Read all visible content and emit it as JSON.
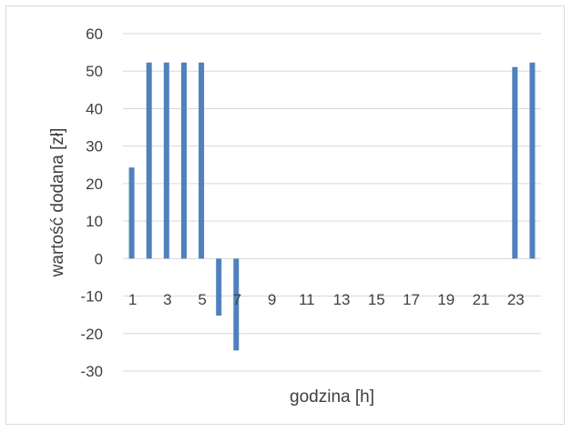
{
  "chart_data": {
    "type": "bar",
    "xlabel": "godzina [h]",
    "ylabel": "wartość dodana [zł]",
    "ylim": [
      -30,
      60
    ],
    "ytick_step": 10,
    "grid": true,
    "categories": [
      "1",
      "2",
      "3",
      "4",
      "5",
      "6",
      "7",
      "8",
      "9",
      "10",
      "11",
      "12",
      "13",
      "14",
      "15",
      "16",
      "17",
      "18",
      "19",
      "20",
      "21",
      "22",
      "23",
      "24"
    ],
    "x_tick_labels": [
      "1",
      "",
      "3",
      "",
      "5",
      "",
      "7",
      "",
      "9",
      "",
      "11",
      "",
      "13",
      "",
      "15",
      "",
      "17",
      "",
      "19",
      "",
      "21",
      "",
      "23",
      ""
    ],
    "values": [
      24.3,
      52.3,
      52.3,
      52.3,
      52.3,
      -15.2,
      -24.5,
      0,
      0,
      0,
      0,
      0,
      0,
      0,
      0,
      0,
      0,
      0,
      0,
      0,
      0,
      0,
      51.1,
      52.3
    ],
    "color": "#4f81bd",
    "grid_color": "#d9d9d9"
  }
}
